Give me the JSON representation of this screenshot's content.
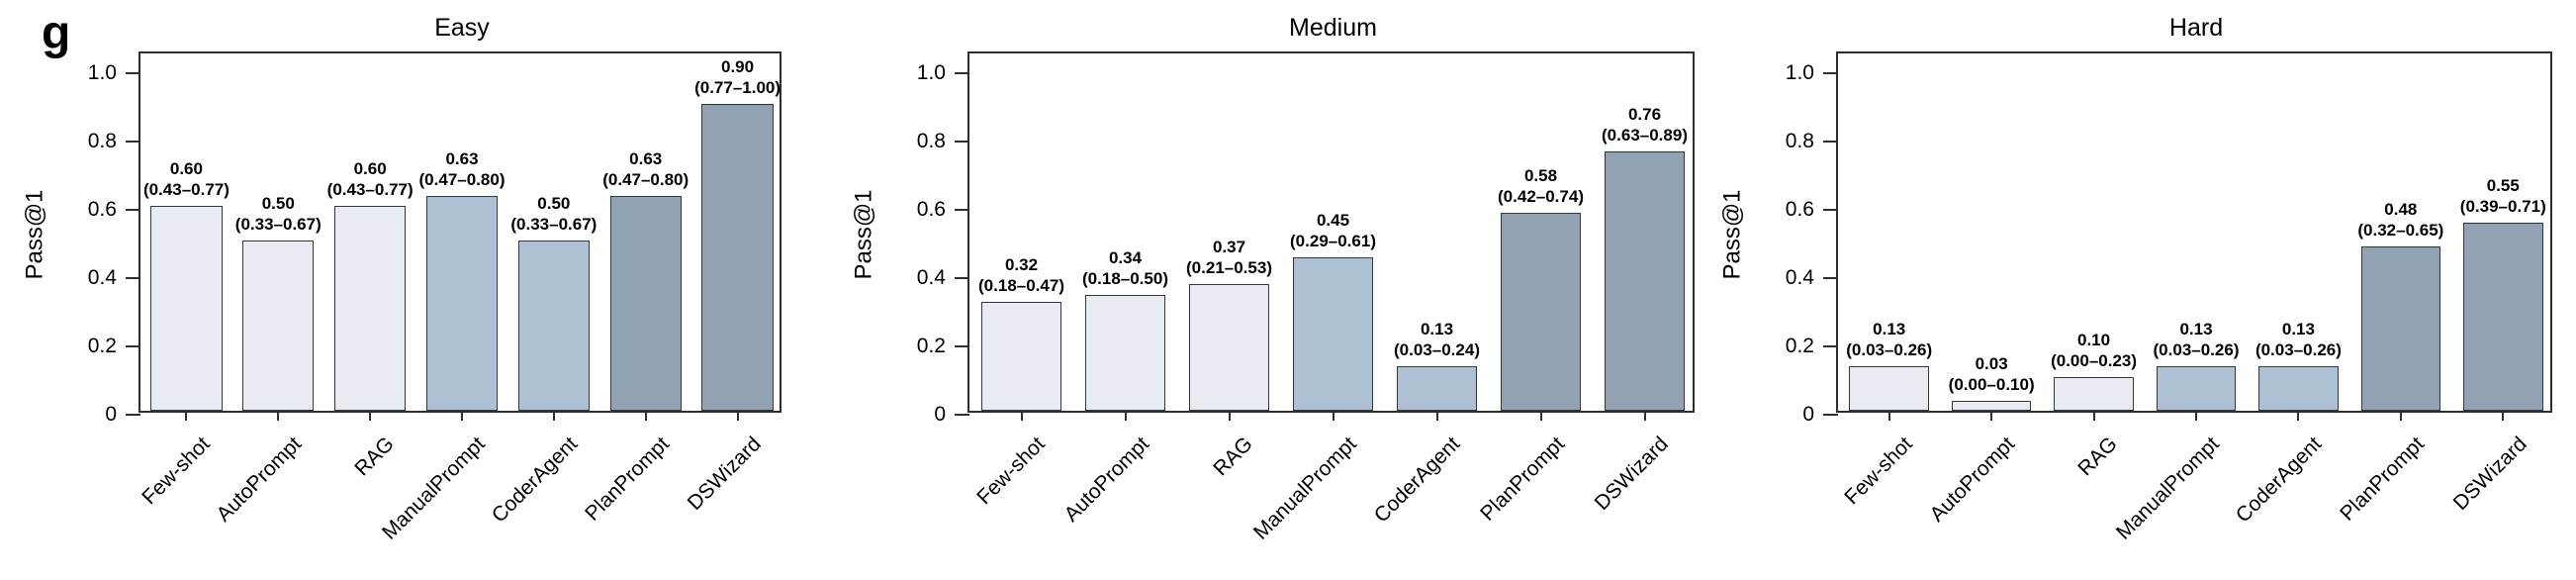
{
  "panel_label": "g",
  "colors": {
    "bar_light": "#e8ebf1",
    "bar_medium": "#aec0d4",
    "bar_dark": "#93a2b2",
    "bar_border": "#33383d",
    "axis": "#2b2f33",
    "text": "#000000",
    "background": "#ffffff"
  },
  "bar_color_classes": [
    "light",
    "light",
    "light",
    "medium",
    "medium",
    "dark",
    "dark"
  ],
  "yticks": [
    {
      "label": "1.0",
      "value": 1.0
    },
    {
      "label": "0.8",
      "value": 0.8
    },
    {
      "label": "0.6",
      "value": 0.6
    },
    {
      "label": "0.4",
      "value": 0.4
    },
    {
      "label": "0.2",
      "value": 0.2
    },
    {
      "label": "0",
      "value": 0
    }
  ],
  "chart_data": [
    {
      "type": "bar",
      "title": "Easy",
      "xlabel": "",
      "ylabel": "Pass@1",
      "ylim": [
        0,
        1.06
      ],
      "grid": false,
      "legend": null,
      "categories": [
        "Few-shot",
        "AutoPrompt",
        "RAG",
        "ManualPrompt",
        "CoderAgent",
        "PlanPrompt",
        "DSWizard"
      ],
      "values": [
        0.6,
        0.5,
        0.6,
        0.63,
        0.5,
        0.63,
        0.9
      ],
      "value_labels": [
        "0.60",
        "0.50",
        "0.60",
        "0.63",
        "0.50",
        "0.63",
        "0.90"
      ],
      "ci_labels": [
        "(0.43–0.77)",
        "(0.33–0.67)",
        "(0.43–0.77)",
        "(0.47–0.80)",
        "(0.33–0.67)",
        "(0.47–0.80)",
        "(0.77–1.00)"
      ]
    },
    {
      "type": "bar",
      "title": "Medium",
      "xlabel": "",
      "ylabel": "Pass@1",
      "ylim": [
        0,
        1.06
      ],
      "grid": false,
      "legend": null,
      "categories": [
        "Few-shot",
        "AutoPrompt",
        "RAG",
        "ManualPrompt",
        "CoderAgent",
        "PlanPrompt",
        "DSWizard"
      ],
      "values": [
        0.32,
        0.34,
        0.37,
        0.45,
        0.13,
        0.58,
        0.76
      ],
      "value_labels": [
        "0.32",
        "0.34",
        "0.37",
        "0.45",
        "0.13",
        "0.58",
        "0.76"
      ],
      "ci_labels": [
        "(0.18–0.47)",
        "(0.18–0.50)",
        "(0.21–0.53)",
        "(0.29–0.61)",
        "(0.03–0.24)",
        "(0.42–0.74)",
        "(0.63–0.89)"
      ]
    },
    {
      "type": "bar",
      "title": "Hard",
      "xlabel": "",
      "ylabel": "Pass@1",
      "ylim": [
        0,
        1.06
      ],
      "grid": false,
      "legend": null,
      "categories": [
        "Few-shot",
        "AutoPrompt",
        "RAG",
        "ManualPrompt",
        "CoderAgent",
        "PlanPrompt",
        "DSWizard"
      ],
      "values": [
        0.13,
        0.03,
        0.1,
        0.13,
        0.13,
        0.48,
        0.55
      ],
      "value_labels": [
        "0.13",
        "0.03",
        "0.10",
        "0.13",
        "0.13",
        "0.48",
        "0.55"
      ],
      "ci_labels": [
        "(0.03–0.26)",
        "(0.00–0.10)",
        "(0.00–0.23)",
        "(0.03–0.26)",
        "(0.03–0.26)",
        "(0.32–0.65)",
        "(0.39–0.71)"
      ]
    }
  ]
}
